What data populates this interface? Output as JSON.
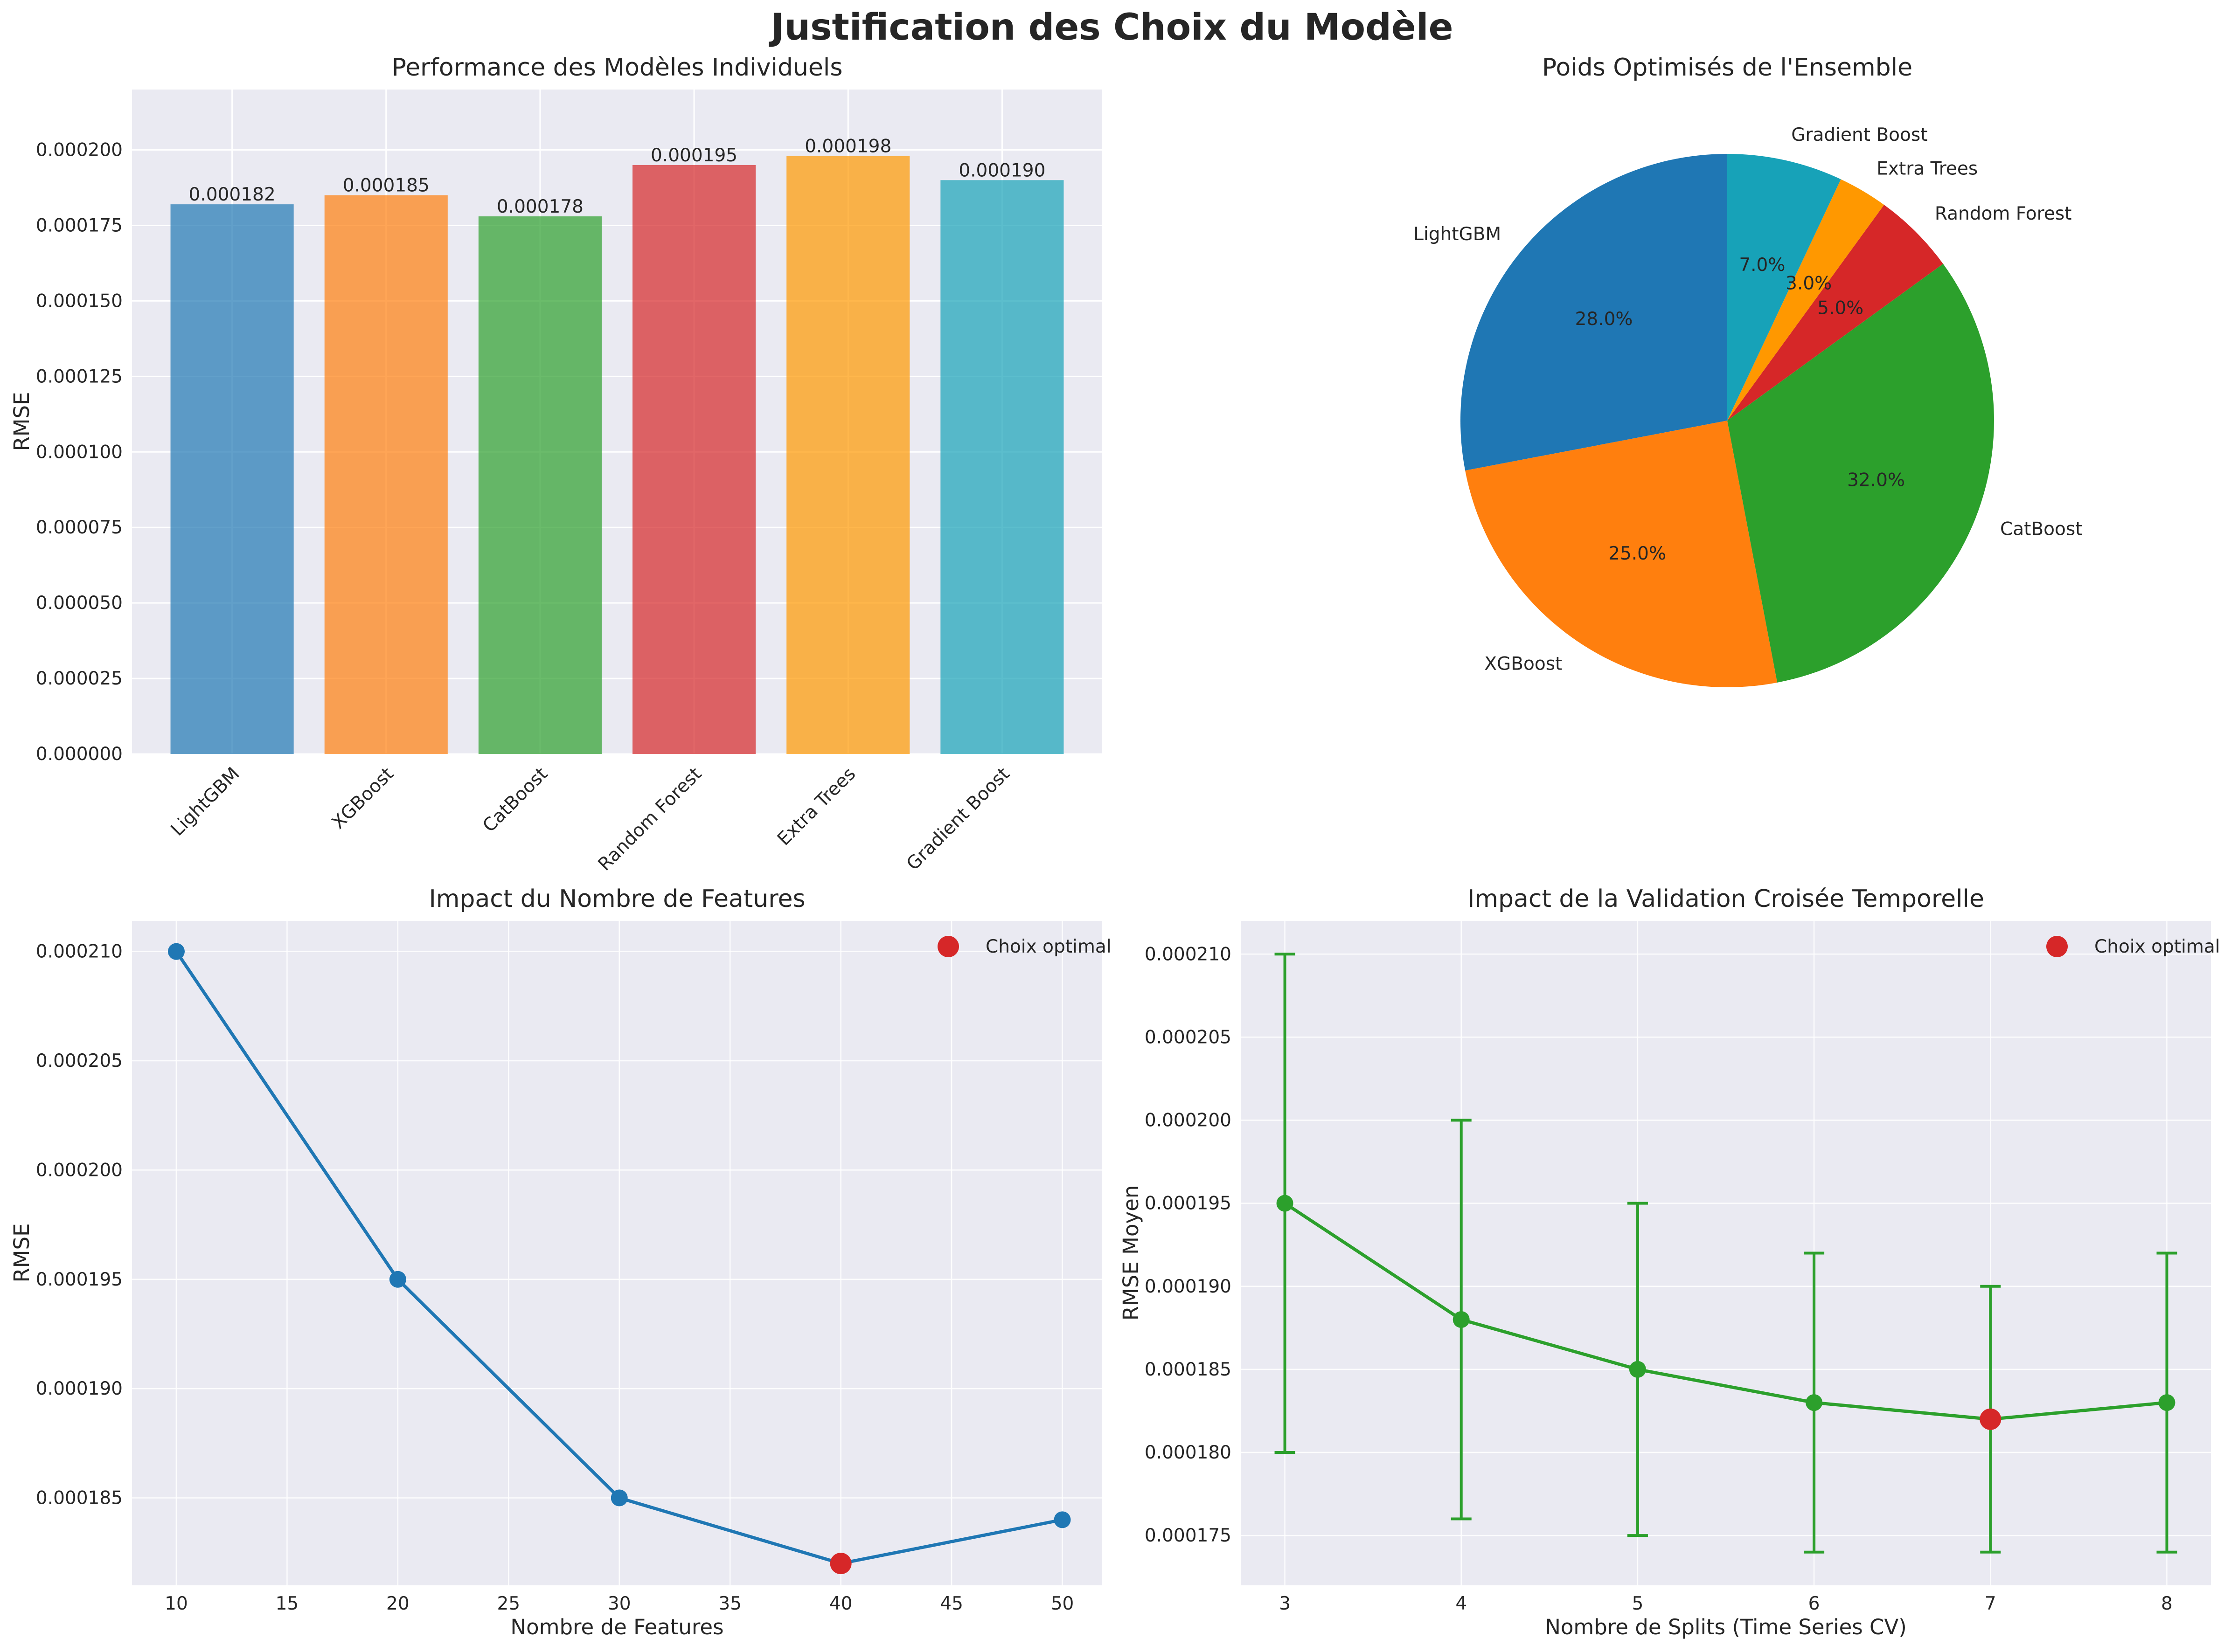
{
  "figure": {
    "title": "Justification des Choix du Modèle"
  },
  "chart_data": [
    {
      "type": "bar",
      "title": "Performance des Modèles Individuels",
      "xlabel": "",
      "ylabel": "RMSE",
      "categories": [
        "LightGBM",
        "XGBoost",
        "CatBoost",
        "Random Forest",
        "Extra Trees",
        "Gradient Boost"
      ],
      "values": [
        0.000182,
        0.000185,
        0.000178,
        0.000195,
        0.000198,
        0.00019
      ],
      "value_labels": [
        "0.000182",
        "0.000185",
        "0.000178",
        "0.000195",
        "0.000198",
        "0.000190"
      ],
      "colors": [
        "#1f77b4",
        "#ff7f0e",
        "#2ca02c",
        "#d62728",
        "#ff9800",
        "#17a2b8"
      ],
      "ylim": [
        0,
        0.00022
      ],
      "yticks": [
        0,
        2.5e-05,
        5e-05,
        7.5e-05,
        0.0001,
        0.000125,
        0.00015,
        0.000175,
        0.0002
      ],
      "ytick_labels": [
        "0.000000",
        "0.000025",
        "0.000050",
        "0.000075",
        "0.000100",
        "0.000125",
        "0.000150",
        "0.000175",
        "0.000200"
      ],
      "grid": true
    },
    {
      "type": "pie",
      "title": "Poids Optimisés de l'Ensemble",
      "labels": [
        "LightGBM",
        "XGBoost",
        "CatBoost",
        "Random Forest",
        "Extra Trees",
        "Gradient Boost"
      ],
      "values": [
        28,
        25,
        32,
        5,
        3,
        7
      ],
      "pct_labels": [
        "28.0%",
        "25.0%",
        "32.0%",
        "5.0%",
        "3.0%",
        "7.0%"
      ],
      "colors": [
        "#1f77b4",
        "#ff7f0e",
        "#2ca02c",
        "#d62728",
        "#ff9800",
        "#17a2b8"
      ],
      "start_angle": 90,
      "direction": "counterclockwise"
    },
    {
      "type": "line",
      "title": "Impact du Nombre de Features",
      "xlabel": "Nombre de Features",
      "ylabel": "RMSE",
      "x": [
        10,
        20,
        30,
        40,
        50
      ],
      "y": [
        0.00021,
        0.000195,
        0.000185,
        0.000182,
        0.000184
      ],
      "color": "#1f77b4",
      "optimal": {
        "x": 40,
        "y": 0.000182,
        "color": "#d62728",
        "label": "Choix optimal"
      },
      "xlim": [
        8,
        51.8
      ],
      "ylim": [
        0.000181,
        0.0002114
      ],
      "xticks": [
        10,
        15,
        20,
        25,
        30,
        35,
        40,
        45,
        50
      ],
      "xtick_labels": [
        "10",
        "15",
        "20",
        "25",
        "30",
        "35",
        "40",
        "45",
        "50"
      ],
      "yticks": [
        0.000185,
        0.00019,
        0.000195,
        0.0002,
        0.000205,
        0.00021
      ],
      "ytick_labels": [
        "0.000185",
        "0.000190",
        "0.000195",
        "0.000200",
        "0.000205",
        "0.000210"
      ],
      "legend": "top-right",
      "grid": true
    },
    {
      "type": "line",
      "title": "Impact de la Validation Croisée Temporelle",
      "xlabel": "Nombre de Splits (Time Series CV)",
      "ylabel": "RMSE Moyen",
      "x": [
        3,
        4,
        5,
        6,
        7,
        8
      ],
      "y": [
        0.000195,
        0.000188,
        0.000185,
        0.000183,
        0.000182,
        0.000183
      ],
      "err": [
        1.5e-05,
        1.2e-05,
        1e-05,
        9e-06,
        8e-06,
        9e-06
      ],
      "color": "#2ca02c",
      "optimal": {
        "x": 7,
        "y": 0.000182,
        "color": "#d62728",
        "label": "Choix optimal"
      },
      "xlim": [
        2.75,
        8.25
      ],
      "ylim": [
        0.000172,
        0.000212
      ],
      "xticks": [
        3,
        4,
        5,
        6,
        7,
        8
      ],
      "xtick_labels": [
        "3",
        "4",
        "5",
        "6",
        "7",
        "8"
      ],
      "yticks": [
        0.000175,
        0.00018,
        0.000185,
        0.00019,
        0.000195,
        0.0002,
        0.000205,
        0.00021
      ],
      "ytick_labels": [
        "0.000175",
        "0.000180",
        "0.000185",
        "0.000190",
        "0.000195",
        "0.000200",
        "0.000205",
        "0.000210"
      ],
      "legend": "top-right",
      "grid": true
    }
  ]
}
